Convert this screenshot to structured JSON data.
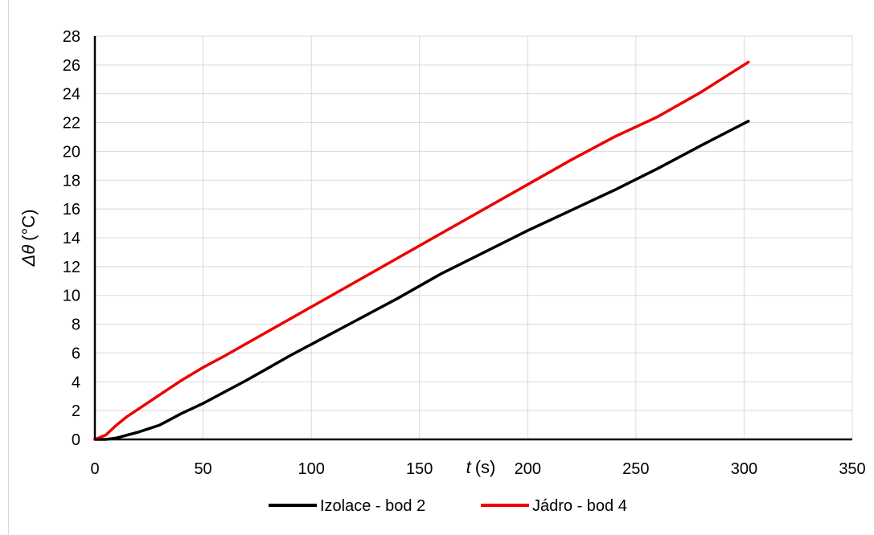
{
  "chart_data": {
    "type": "line",
    "xlabel_var": "t",
    "xlabel_unit": "(s)",
    "ylabel_var": "Δθ",
    "ylabel_unit": "(°C)",
    "xlim": [
      0,
      350
    ],
    "ylim": [
      0,
      28
    ],
    "x_ticks": [
      0,
      50,
      100,
      150,
      200,
      250,
      300,
      350
    ],
    "y_ticks": [
      0,
      2,
      4,
      6,
      8,
      10,
      12,
      14,
      16,
      18,
      20,
      22,
      24,
      26,
      28
    ],
    "grid": true,
    "legend_position": "bottom",
    "series": [
      {
        "name": "Izolace - bod 2",
        "color": "#000000",
        "x": [
          0,
          5,
          10,
          15,
          20,
          25,
          30,
          35,
          40,
          50,
          60,
          70,
          80,
          90,
          100,
          120,
          140,
          160,
          180,
          200,
          220,
          240,
          260,
          280,
          302
        ],
        "y": [
          0,
          0,
          0.1,
          0.3,
          0.5,
          0.75,
          1.0,
          1.4,
          1.8,
          2.5,
          3.3,
          4.1,
          4.95,
          5.8,
          6.6,
          8.2,
          9.8,
          11.5,
          13.0,
          14.5,
          15.9,
          17.3,
          18.8,
          20.4,
          22.1
        ]
      },
      {
        "name": "Jádro - bod 4",
        "color": "#ee0000",
        "x": [
          0,
          5,
          10,
          15,
          20,
          30,
          40,
          50,
          60,
          80,
          100,
          120,
          140,
          160,
          180,
          200,
          220,
          240,
          260,
          280,
          302
        ],
        "y": [
          0,
          0.3,
          1.0,
          1.6,
          2.1,
          3.1,
          4.1,
          5.0,
          5.8,
          7.5,
          9.2,
          10.9,
          12.6,
          14.3,
          16.0,
          17.7,
          19.4,
          21.0,
          22.4,
          24.1,
          26.2
        ]
      }
    ]
  }
}
